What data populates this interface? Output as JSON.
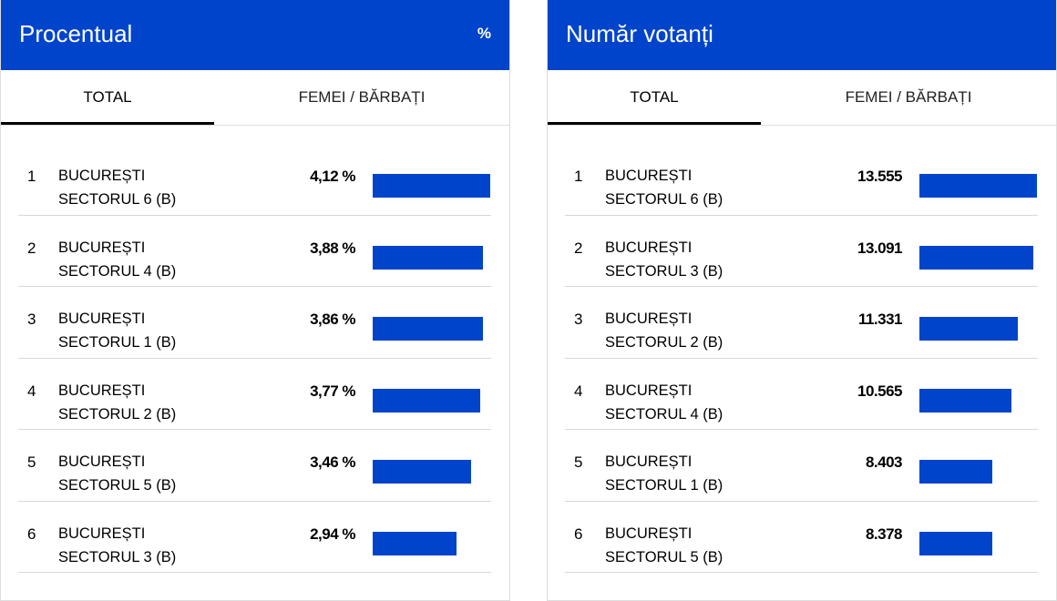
{
  "chart_data": [
    {
      "type": "bar",
      "title": "Procentual",
      "unit_label": "%",
      "tabs": [
        "TOTAL",
        "FEMEI / BĂRBAȚI"
      ],
      "active_tab": 0,
      "rows": [
        {
          "rank": "1",
          "line1": "BUCUREȘTI",
          "line2": "SECTORUL 6 (B)",
          "value": 4.12,
          "label": "4,12 %"
        },
        {
          "rank": "2",
          "line1": "BUCUREȘTI",
          "line2": "SECTORUL 4 (B)",
          "value": 3.88,
          "label": "3,88 %"
        },
        {
          "rank": "3",
          "line1": "BUCUREȘTI",
          "line2": "SECTORUL 1 (B)",
          "value": 3.86,
          "label": "3,86 %"
        },
        {
          "rank": "4",
          "line1": "BUCUREȘTI",
          "line2": "SECTORUL 2 (B)",
          "value": 3.77,
          "label": "3,77 %"
        },
        {
          "rank": "5",
          "line1": "BUCUREȘTI",
          "line2": "SECTORUL 5 (B)",
          "value": 3.46,
          "label": "3,46 %"
        },
        {
          "rank": "6",
          "line1": "BUCUREȘTI",
          "line2": "SECTORUL 3 (B)",
          "value": 2.94,
          "label": "2,94 %"
        }
      ]
    },
    {
      "type": "bar",
      "title": "Număr votanți",
      "unit_label": "",
      "tabs": [
        "TOTAL",
        "FEMEI / BĂRBAȚI"
      ],
      "active_tab": 0,
      "rows": [
        {
          "rank": "1",
          "line1": "BUCUREȘTI",
          "line2": "SECTORUL 6 (B)",
          "value": 13555,
          "label": "13.555"
        },
        {
          "rank": "2",
          "line1": "BUCUREȘTI",
          "line2": "SECTORUL 3 (B)",
          "value": 13091,
          "label": "13.091"
        },
        {
          "rank": "3",
          "line1": "BUCUREȘTI",
          "line2": "SECTORUL 2 (B)",
          "value": 11331,
          "label": "11.331"
        },
        {
          "rank": "4",
          "line1": "BUCUREȘTI",
          "line2": "SECTORUL 4 (B)",
          "value": 10565,
          "label": "10.565"
        },
        {
          "rank": "5",
          "line1": "BUCUREȘTI",
          "line2": "SECTORUL 1 (B)",
          "value": 8403,
          "label": "8.403"
        },
        {
          "rank": "6",
          "line1": "BUCUREȘTI",
          "line2": "SECTORUL 5 (B)",
          "value": 8378,
          "label": "8.378"
        }
      ]
    }
  ],
  "colors": {
    "accent": "#0044cc"
  }
}
